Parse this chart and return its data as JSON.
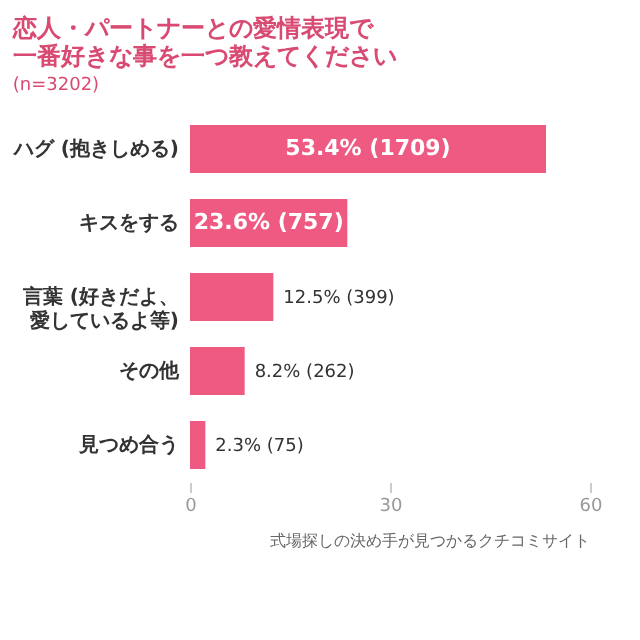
{
  "chart_data": {
    "type": "bar",
    "orientation": "horizontal",
    "title": [
      "恋人・パートナーとの愛情表現で",
      "一番好きな事を一つ教えてください"
    ],
    "subtitle": "(n=3202)",
    "categories": [
      "ハグ (抱きしめる)",
      "キスをする",
      "言葉 (好きだよ、愛しているよ等)",
      "その他",
      "見つめ合う"
    ],
    "values": [
      53.4,
      23.6,
      12.5,
      8.2,
      2.3
    ],
    "value_labels": [
      "53.4% (1709)",
      "23.6% (757)",
      "12.5% (399)",
      "8.2% (262)",
      "2.3% (75)"
    ],
    "color": "#ef5a82",
    "xlim": [
      0,
      60
    ],
    "xticks": [
      0,
      30,
      60
    ],
    "grid": false,
    "annotations": [
      "式場探しの決め手が見つかるクチコミサイト"
    ]
  }
}
